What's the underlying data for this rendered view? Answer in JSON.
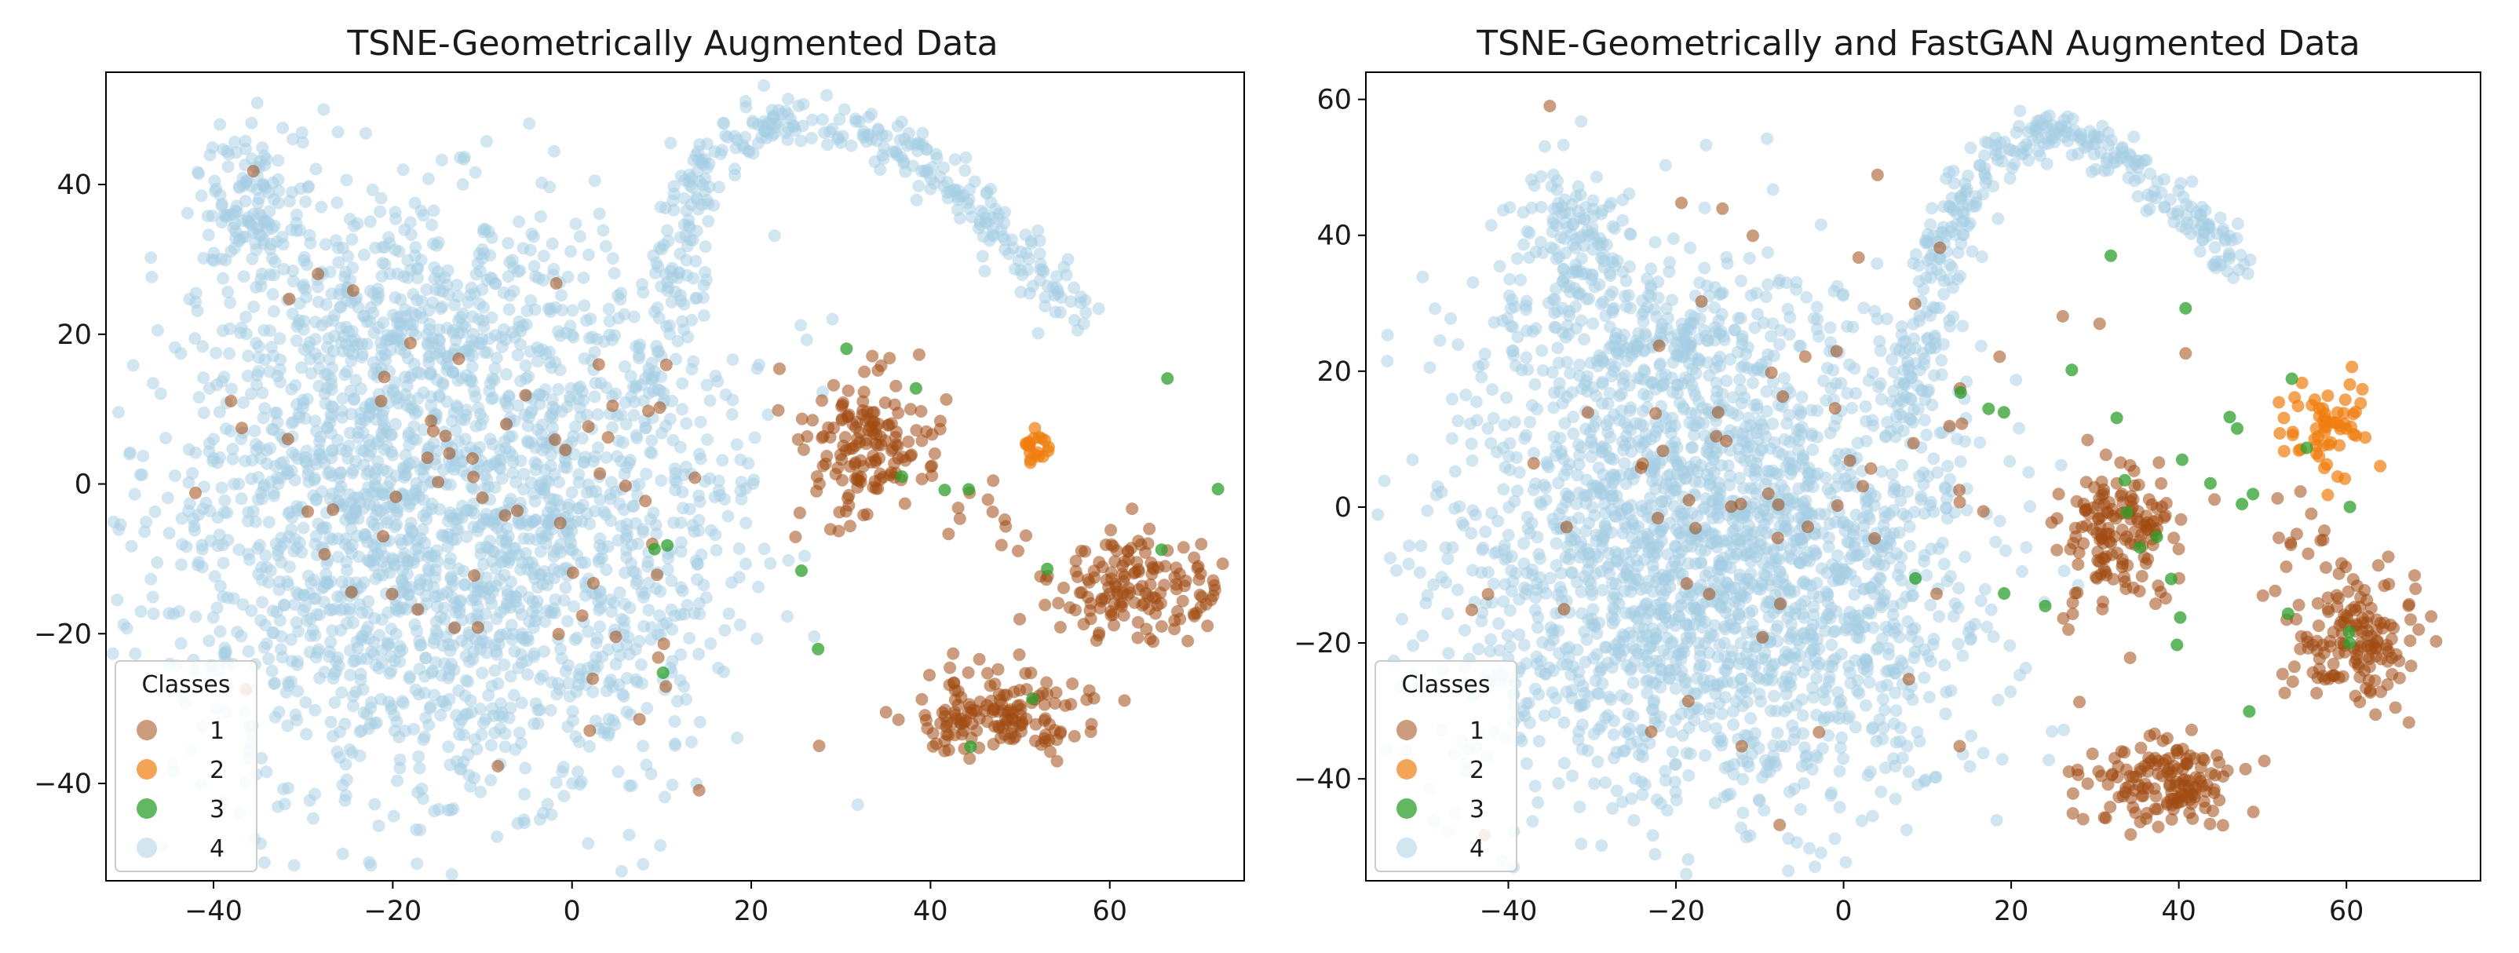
{
  "colors": {
    "1": "#a04a12",
    "2": "#f07d0e",
    "3": "#2ca02c",
    "4": "#a6cee3"
  },
  "chart_data": [
    {
      "type": "scatter",
      "title": "TSNE-Geometrically Augmented Data",
      "xlabel": "",
      "ylabel": "",
      "xlim": [
        -52,
        75
      ],
      "ylim": [
        -53,
        55
      ],
      "xticks": [
        -40,
        -20,
        0,
        20,
        40,
        60
      ],
      "yticks": [
        -40,
        -20,
        0,
        20,
        40
      ],
      "legend": {
        "title": "Classes",
        "placement": "lower-left",
        "entries": [
          "1",
          "2",
          "3",
          "4"
        ]
      },
      "series": [
        {
          "name": "4",
          "clusters": [
            {
              "cx": -18,
              "cy": -5,
              "sx": 15,
              "sy": 19,
              "n": 1700
            },
            {
              "cx": -36,
              "cy": 38,
              "sx": 3,
              "sy": 5,
              "n": 120
            },
            {
              "cx": -20,
              "cy": 24,
              "sx": 10,
              "sy": 7,
              "n": 250
            },
            {
              "cx": 2,
              "cy": -8,
              "sx": 10,
              "sy": 18,
              "n": 450
            }
          ],
          "arc": {
            "pts": [
              [
                8,
                8
              ],
              [
                12,
                22
              ],
              [
                13,
                35
              ],
              [
                15,
                43
              ],
              [
                22,
                49
              ],
              [
                30,
                48
              ],
              [
                38,
                44
              ],
              [
                45,
                37
              ],
              [
                52,
                29
              ],
              [
                56,
                23
              ]
            ],
            "n": 350,
            "spread": 1.6
          }
        },
        {
          "name": "1",
          "clusters": [
            {
              "cx": 33,
              "cy": 5,
              "sx": 3.5,
              "sy": 5.5,
              "n": 150
            },
            {
              "cx": 63,
              "cy": -14,
              "sx": 5,
              "sy": 3.5,
              "n": 150
            },
            {
              "cx": 47,
              "cy": -31,
              "sx": 5,
              "sy": 3,
              "n": 150
            },
            {
              "cx": -5,
              "cy": 5,
              "sx": 18,
              "sy": 18,
              "n": 70
            },
            {
              "cx": 46,
              "cy": -6,
              "sx": 3,
              "sy": 3,
              "n": 12
            }
          ]
        },
        {
          "name": "2",
          "clusters": [
            {
              "cx": 51.5,
              "cy": 4.5,
              "sx": 1.2,
              "sy": 1.5,
              "n": 20
            }
          ]
        },
        {
          "name": "3",
          "clusters": [
            {
              "cx": 35,
              "cy": 0,
              "sx": 16,
              "sy": 15,
              "n": 16
            }
          ]
        }
      ]
    },
    {
      "type": "scatter",
      "title": "TSNE-Geometrically and FastGAN Augmented Data",
      "xlabel": "",
      "ylabel": "",
      "xlim": [
        -57,
        76
      ],
      "ylim": [
        -55,
        64
      ],
      "xticks": [
        -40,
        -20,
        0,
        20,
        40,
        60
      ],
      "yticks": [
        -40,
        -20,
        0,
        20,
        40,
        60
      ],
      "legend": {
        "title": "Classes",
        "placement": "lower-left",
        "entries": [
          "1",
          "2",
          "3",
          "4"
        ]
      },
      "series": [
        {
          "name": "4",
          "clusters": [
            {
              "cx": -20,
              "cy": -8,
              "sx": 14,
              "sy": 18,
              "n": 1700
            },
            {
              "cx": -33,
              "cy": 40,
              "sx": 3.5,
              "sy": 6,
              "n": 120
            },
            {
              "cx": -22,
              "cy": 25,
              "sx": 10,
              "sy": 7,
              "n": 250
            },
            {
              "cx": 0,
              "cy": -10,
              "sx": 10,
              "sy": 18,
              "n": 450
            }
          ],
          "arc": {
            "pts": [
              [
                6,
                10
              ],
              [
                10,
                25
              ],
              [
                12,
                38
              ],
              [
                15,
                48
              ],
              [
                22,
                55
              ],
              [
                28,
                55
              ],
              [
                36,
                49
              ],
              [
                42,
                42
              ],
              [
                47,
                34
              ]
            ],
            "n": 350,
            "spread": 1.6
          }
        },
        {
          "name": "1",
          "clusters": [
            {
              "cx": 33,
              "cy": -4,
              "sx": 4,
              "sy": 5,
              "n": 150
            },
            {
              "cx": 61,
              "cy": -20,
              "sx": 4,
              "sy": 5,
              "n": 150
            },
            {
              "cx": 38,
              "cy": -41,
              "sx": 4.5,
              "sy": 3.5,
              "n": 150
            },
            {
              "cx": -5,
              "cy": 5,
              "sx": 18,
              "sy": 20,
              "n": 70
            },
            {
              "cx": 55,
              "cy": -4,
              "sx": 3,
              "sy": 3,
              "n": 12
            }
          ]
        },
        {
          "name": "2",
          "clusters": [
            {
              "cx": 58,
              "cy": 12,
              "sx": 2.8,
              "sy": 3.8,
              "n": 60
            }
          ]
        },
        {
          "name": "3",
          "clusters": [
            {
              "cx": 40,
              "cy": 0,
              "sx": 15,
              "sy": 17,
              "n": 30
            }
          ]
        }
      ]
    }
  ]
}
